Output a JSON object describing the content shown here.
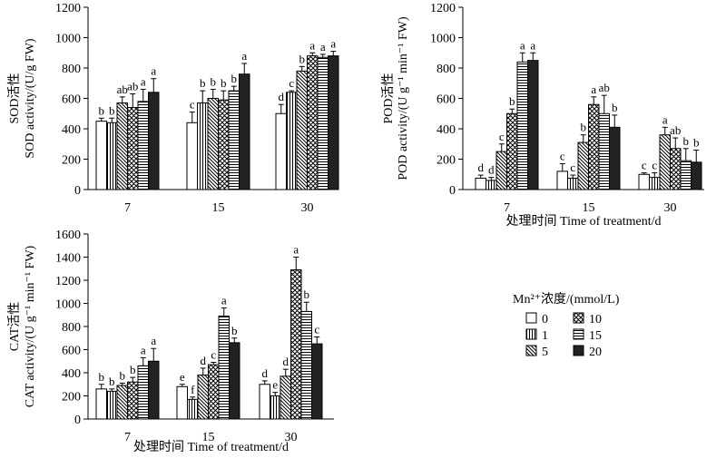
{
  "chart_data": [
    {
      "type": "bar",
      "id": "sod",
      "title": "",
      "ylabel_cn": "SOD活性",
      "ylabel": "SOD activity/(U/g FW)",
      "xlabel_cn": "",
      "xlabel": "",
      "ylim": [
        0,
        1200
      ],
      "yticks": [
        0,
        200,
        400,
        600,
        800,
        1000,
        1200
      ],
      "categories": [
        "7",
        "15",
        "30"
      ],
      "series_names": [
        "0",
        "1",
        "5",
        "10",
        "15",
        "20"
      ],
      "values": [
        [
          450,
          440,
          570,
          540,
          580,
          640
        ],
        [
          440,
          570,
          600,
          590,
          650,
          760
        ],
        [
          500,
          640,
          780,
          880,
          870,
          880
        ]
      ],
      "errors": [
        [
          20,
          30,
          40,
          90,
          80,
          90
        ],
        [
          70,
          80,
          60,
          60,
          30,
          70
        ],
        [
          60,
          10,
          30,
          20,
          20,
          30
        ]
      ],
      "letters": [
        [
          "b",
          "b",
          "ab",
          "ab",
          "a",
          "a"
        ],
        [
          "c",
          "b",
          "b",
          "b",
          "b",
          "a"
        ],
        [
          "d",
          "c",
          "b",
          "a",
          "a",
          "a"
        ]
      ]
    },
    {
      "type": "bar",
      "id": "pod",
      "title": "",
      "ylabel_cn": "POD活性",
      "ylabel": "POD activity/(U g⁻¹ min⁻¹ FW)",
      "xlabel_cn": "处理时间",
      "xlabel": "Time of treatment/d",
      "ylim": [
        0,
        1200
      ],
      "yticks": [
        0,
        200,
        400,
        600,
        800,
        1000,
        1200
      ],
      "categories": [
        "7",
        "15",
        "30"
      ],
      "series_names": [
        "0",
        "1",
        "5",
        "10",
        "15",
        "20"
      ],
      "values": [
        [
          75,
          60,
          250,
          500,
          840,
          850
        ],
        [
          120,
          75,
          310,
          560,
          500,
          410
        ],
        [
          100,
          80,
          360,
          270,
          190,
          180
        ]
      ],
      "errors": [
        [
          20,
          20,
          50,
          30,
          60,
          50
        ],
        [
          50,
          20,
          50,
          50,
          120,
          80
        ],
        [
          10,
          30,
          50,
          70,
          80,
          80
        ]
      ],
      "letters": [
        [
          "d",
          "d",
          "c",
          "b",
          "a",
          "a"
        ],
        [
          "c",
          "c",
          "b",
          "a",
          "ab",
          "b"
        ],
        [
          "c",
          "c",
          "a",
          "ab",
          "b",
          "b"
        ]
      ]
    },
    {
      "type": "bar",
      "id": "cat",
      "title": "",
      "ylabel_cn": "CAT活性",
      "ylabel": "CAT activity/(U g⁻¹ min⁻¹ FW)",
      "xlabel_cn": "处理时间",
      "xlabel": "Time of treatment/d",
      "ylim": [
        0,
        1600
      ],
      "yticks": [
        0,
        200,
        400,
        600,
        800,
        1000,
        1200,
        1400,
        1600
      ],
      "categories": [
        "7",
        "15",
        "30"
      ],
      "series_names": [
        "0",
        "1",
        "5",
        "10",
        "15",
        "20"
      ],
      "values": [
        [
          260,
          240,
          290,
          320,
          460,
          500
        ],
        [
          280,
          170,
          380,
          470,
          890,
          660
        ],
        [
          300,
          200,
          370,
          1290,
          930,
          650
        ]
      ],
      "errors": [
        [
          40,
          20,
          20,
          40,
          70,
          110
        ],
        [
          20,
          20,
          60,
          20,
          70,
          40
        ],
        [
          30,
          30,
          60,
          110,
          80,
          60
        ]
      ],
      "letters": [
        [
          "b",
          "b",
          "b",
          "b",
          "a",
          "a"
        ],
        [
          "e",
          "f",
          "d",
          "c",
          "a",
          "b"
        ],
        [
          "d",
          "e",
          "d",
          "a",
          "b",
          "c"
        ]
      ]
    }
  ],
  "legend": {
    "title": "Mn²⁺浓度/(mmol/L)",
    "entries": [
      "0",
      "1",
      "5",
      "10",
      "15",
      "20"
    ]
  }
}
